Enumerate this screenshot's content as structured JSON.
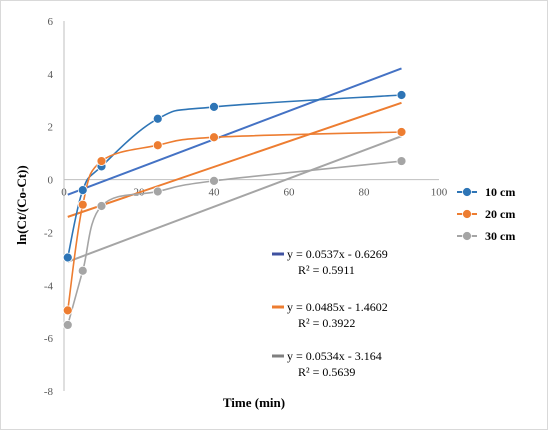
{
  "chart_data": {
    "type": "scatter",
    "title": "",
    "xlabel": "Time (min)",
    "ylabel": "ln(Ct/(Co-Ct))",
    "xlim": [
      0,
      100
    ],
    "ylim": [
      -8,
      6
    ],
    "xticks": [
      0,
      20,
      40,
      60,
      80,
      100
    ],
    "yticks": [
      -8,
      -6,
      -4,
      -2,
      0,
      2,
      4,
      6
    ],
    "grid": false,
    "legend_position": "right",
    "series": [
      {
        "name": "10 cm",
        "color": "#2e75b6",
        "marker": "circle",
        "x": [
          1,
          5,
          10,
          25,
          40,
          90
        ],
        "y": [
          -2.95,
          -0.4,
          0.5,
          2.3,
          2.75,
          3.2
        ],
        "trendline": {
          "slope": 0.0537,
          "intercept": -0.6269,
          "equation": "y = 0.0537x - 0.6269",
          "r2_label": "R² = 0.5911",
          "color": "#4472c4"
        }
      },
      {
        "name": "20 cm",
        "color": "#ed7d31",
        "marker": "circle",
        "x": [
          1,
          5,
          10,
          25,
          40,
          90
        ],
        "y": [
          -4.95,
          -0.95,
          0.7,
          1.3,
          1.6,
          1.8
        ],
        "trendline": {
          "slope": 0.0485,
          "intercept": -1.4602,
          "equation": "y = 0.0485x - 1.4602",
          "r2_label": "R² = 0.3922",
          "color": "#ed7d31"
        }
      },
      {
        "name": "30 cm",
        "color": "#a5a5a5",
        "marker": "circle",
        "x": [
          1,
          5,
          10,
          25,
          40,
          90
        ],
        "y": [
          -5.5,
          -3.45,
          -1.0,
          -0.45,
          -0.05,
          0.7
        ],
        "trendline": {
          "slope": 0.0534,
          "intercept": -3.164,
          "equation": "y = 0.0534x - 3.164",
          "r2_label": "R² = 0.5639",
          "color": "#a5a5a5"
        }
      }
    ]
  }
}
